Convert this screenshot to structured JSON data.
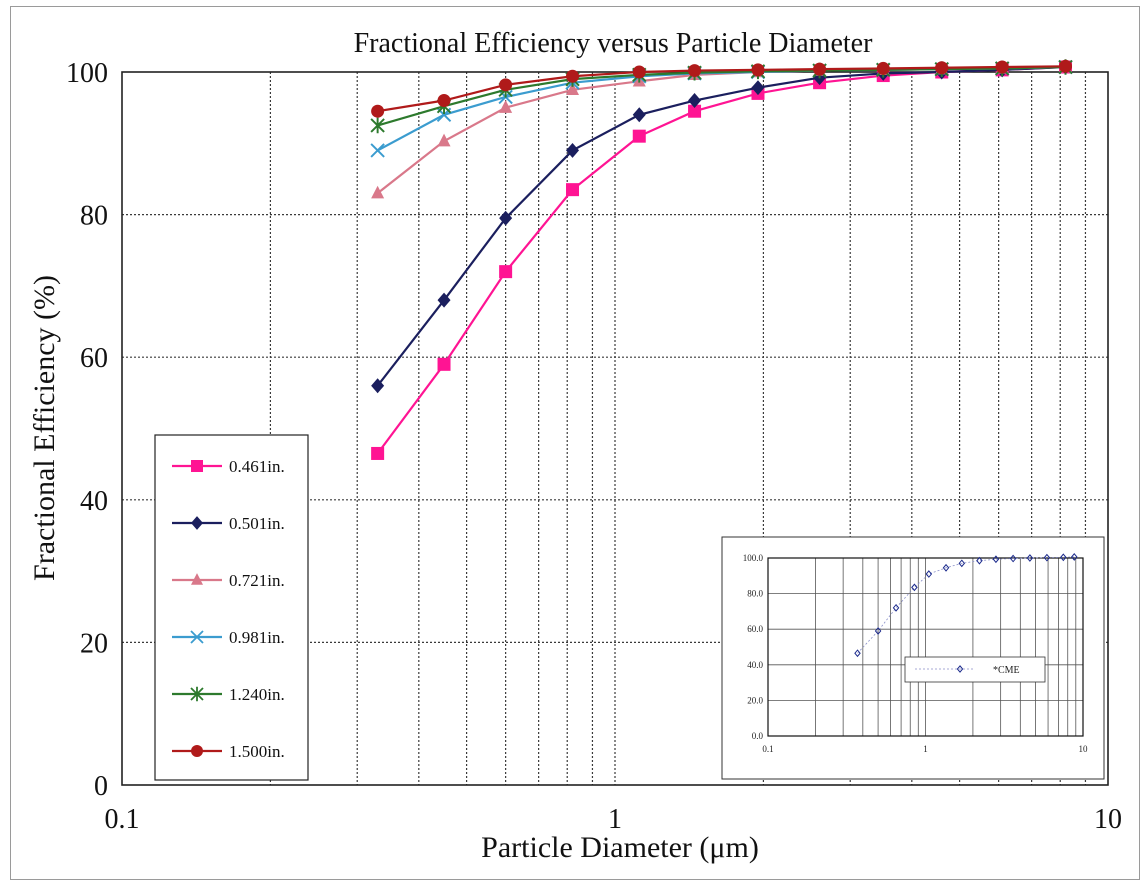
{
  "chart_data": [
    {
      "type": "line",
      "title": "Fractional Efficiency versus Particle Diameter",
      "xlabel": "Particle Diameter (μm)",
      "ylabel": "Fractional Efficiency (%)",
      "xscale": "log",
      "xlim": [
        0.1,
        10
      ],
      "ylim": [
        0,
        100
      ],
      "xticks": [
        "0.1",
        "1",
        "10"
      ],
      "yticks": [
        "0",
        "20",
        "40",
        "60",
        "80",
        "100"
      ],
      "grid": true,
      "legend_position": "left",
      "x": [
        0.33,
        0.45,
        0.6,
        0.82,
        1.12,
        1.45,
        1.95,
        2.6,
        3.5,
        4.6,
        6.1,
        8.2
      ],
      "series": [
        {
          "name": "0.461in.",
          "color": "#ff1493",
          "marker": "square",
          "values": [
            46.5,
            59,
            72,
            83.5,
            91,
            94.5,
            97,
            98.5,
            99.5,
            100,
            100.3,
            100.7
          ]
        },
        {
          "name": "0.501in.",
          "color": "#1b1f5e",
          "marker": "diamond",
          "values": [
            56,
            68,
            79.5,
            89,
            94,
            96,
            97.8,
            99.2,
            99.8,
            100,
            100.3,
            100.7
          ]
        },
        {
          "name": "0.721in.",
          "color": "#d9788a",
          "marker": "triangle",
          "values": [
            83,
            90.3,
            95,
            97.5,
            98.7,
            99.6,
            100,
            100.2,
            100.3,
            100.4,
            100.5,
            100.7
          ]
        },
        {
          "name": "0.981in.",
          "color": "#3b9ccf",
          "marker": "x",
          "values": [
            89,
            94,
            96.5,
            98.5,
            99.4,
            99.8,
            100,
            100.2,
            100.3,
            100.4,
            100.5,
            100.7
          ]
        },
        {
          "name": "1.240in.",
          "color": "#2d7a2d",
          "marker": "star",
          "values": [
            92.5,
            95.2,
            97.5,
            99,
            99.6,
            99.9,
            100.1,
            100.2,
            100.3,
            100.4,
            100.5,
            100.7
          ]
        },
        {
          "name": "1.500in.",
          "color": "#b01a1a",
          "marker": "circle",
          "values": [
            94.5,
            96,
            98.2,
            99.4,
            100,
            100.2,
            100.3,
            100.4,
            100.5,
            100.6,
            100.7,
            100.8
          ]
        }
      ]
    },
    {
      "type": "line",
      "title": "",
      "xscale": "log",
      "xlim": [
        0.1,
        10
      ],
      "ylim": [
        0,
        100
      ],
      "xticks": [
        "0.1",
        "1",
        "10"
      ],
      "yticks": [
        "0.0",
        "20.0",
        "40.0",
        "60.0",
        "80.0",
        "100.0"
      ],
      "grid": true,
      "legend_position": "center-right",
      "x": [
        0.37,
        0.5,
        0.65,
        0.85,
        1.05,
        1.35,
        1.7,
        2.2,
        2.8,
        3.6,
        4.6,
        5.9,
        7.5,
        8.8
      ],
      "series": [
        {
          "name": "*CME",
          "color": "#1b2a8c",
          "marker": "diamond",
          "values": [
            46.5,
            59,
            72,
            83.5,
            91,
            94.5,
            97,
            98.5,
            99.3,
            99.7,
            100,
            100.2,
            100.4,
            100.6
          ]
        }
      ]
    }
  ]
}
